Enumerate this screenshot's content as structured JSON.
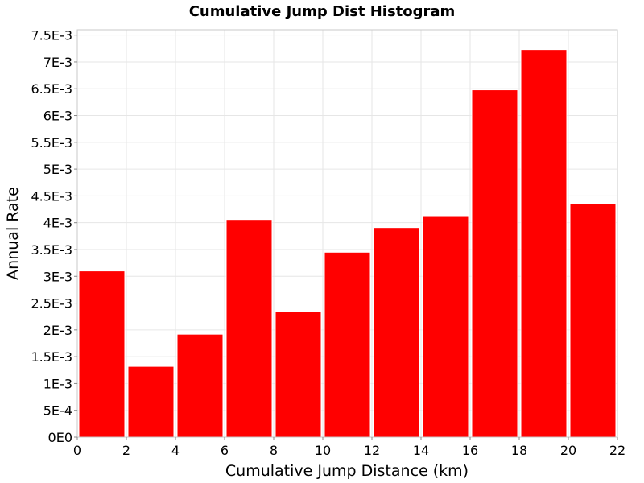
{
  "chart_data": {
    "type": "bar",
    "title": "Cumulative Jump Dist Histogram",
    "xlabel": "Cumulative Jump Distance (km)",
    "ylabel": "Annual Rate",
    "xlim": [
      0,
      22
    ],
    "ylim": [
      0,
      0.0076
    ],
    "x_ticks": [
      {
        "value": 0,
        "label": "0"
      },
      {
        "value": 2,
        "label": "2"
      },
      {
        "value": 4,
        "label": "4"
      },
      {
        "value": 6,
        "label": "6"
      },
      {
        "value": 8,
        "label": "8"
      },
      {
        "value": 10,
        "label": "10"
      },
      {
        "value": 12,
        "label": "12"
      },
      {
        "value": 14,
        "label": "14"
      },
      {
        "value": 16,
        "label": "16"
      },
      {
        "value": 18,
        "label": "18"
      },
      {
        "value": 20,
        "label": "20"
      },
      {
        "value": 22,
        "label": "22"
      }
    ],
    "y_ticks": [
      {
        "value": 0,
        "label": "0E0"
      },
      {
        "value": 0.0005,
        "label": "5E-4"
      },
      {
        "value": 0.001,
        "label": "1E-3"
      },
      {
        "value": 0.0015,
        "label": "1.5E-3"
      },
      {
        "value": 0.002,
        "label": "2E-3"
      },
      {
        "value": 0.0025,
        "label": "2.5E-3"
      },
      {
        "value": 0.003,
        "label": "3E-3"
      },
      {
        "value": 0.0035,
        "label": "3.5E-3"
      },
      {
        "value": 0.004,
        "label": "4E-3"
      },
      {
        "value": 0.0045,
        "label": "4.5E-3"
      },
      {
        "value": 0.005,
        "label": "5E-3"
      },
      {
        "value": 0.0055,
        "label": "5.5E-3"
      },
      {
        "value": 0.006,
        "label": "6E-3"
      },
      {
        "value": 0.0065,
        "label": "6.5E-3"
      },
      {
        "value": 0.007,
        "label": "7E-3"
      },
      {
        "value": 0.0075,
        "label": "7.5E-3"
      }
    ],
    "bins": [
      {
        "x0": 0,
        "x1": 2,
        "value": 0.0031
      },
      {
        "x0": 2,
        "x1": 4,
        "value": 0.00132
      },
      {
        "x0": 4,
        "x1": 6,
        "value": 0.00192
      },
      {
        "x0": 6,
        "x1": 8,
        "value": 0.00406
      },
      {
        "x0": 8,
        "x1": 10,
        "value": 0.00235
      },
      {
        "x0": 10,
        "x1": 12,
        "value": 0.00345
      },
      {
        "x0": 12,
        "x1": 14,
        "value": 0.00391
      },
      {
        "x0": 14,
        "x1": 16,
        "value": 0.00413
      },
      {
        "x0": 16,
        "x1": 18,
        "value": 0.00648
      },
      {
        "x0": 18,
        "x1": 20,
        "value": 0.00723
      },
      {
        "x0": 20,
        "x1": 22,
        "value": 0.00436
      }
    ],
    "bar_color": "#ff0000",
    "grid": true,
    "legend": false
  }
}
